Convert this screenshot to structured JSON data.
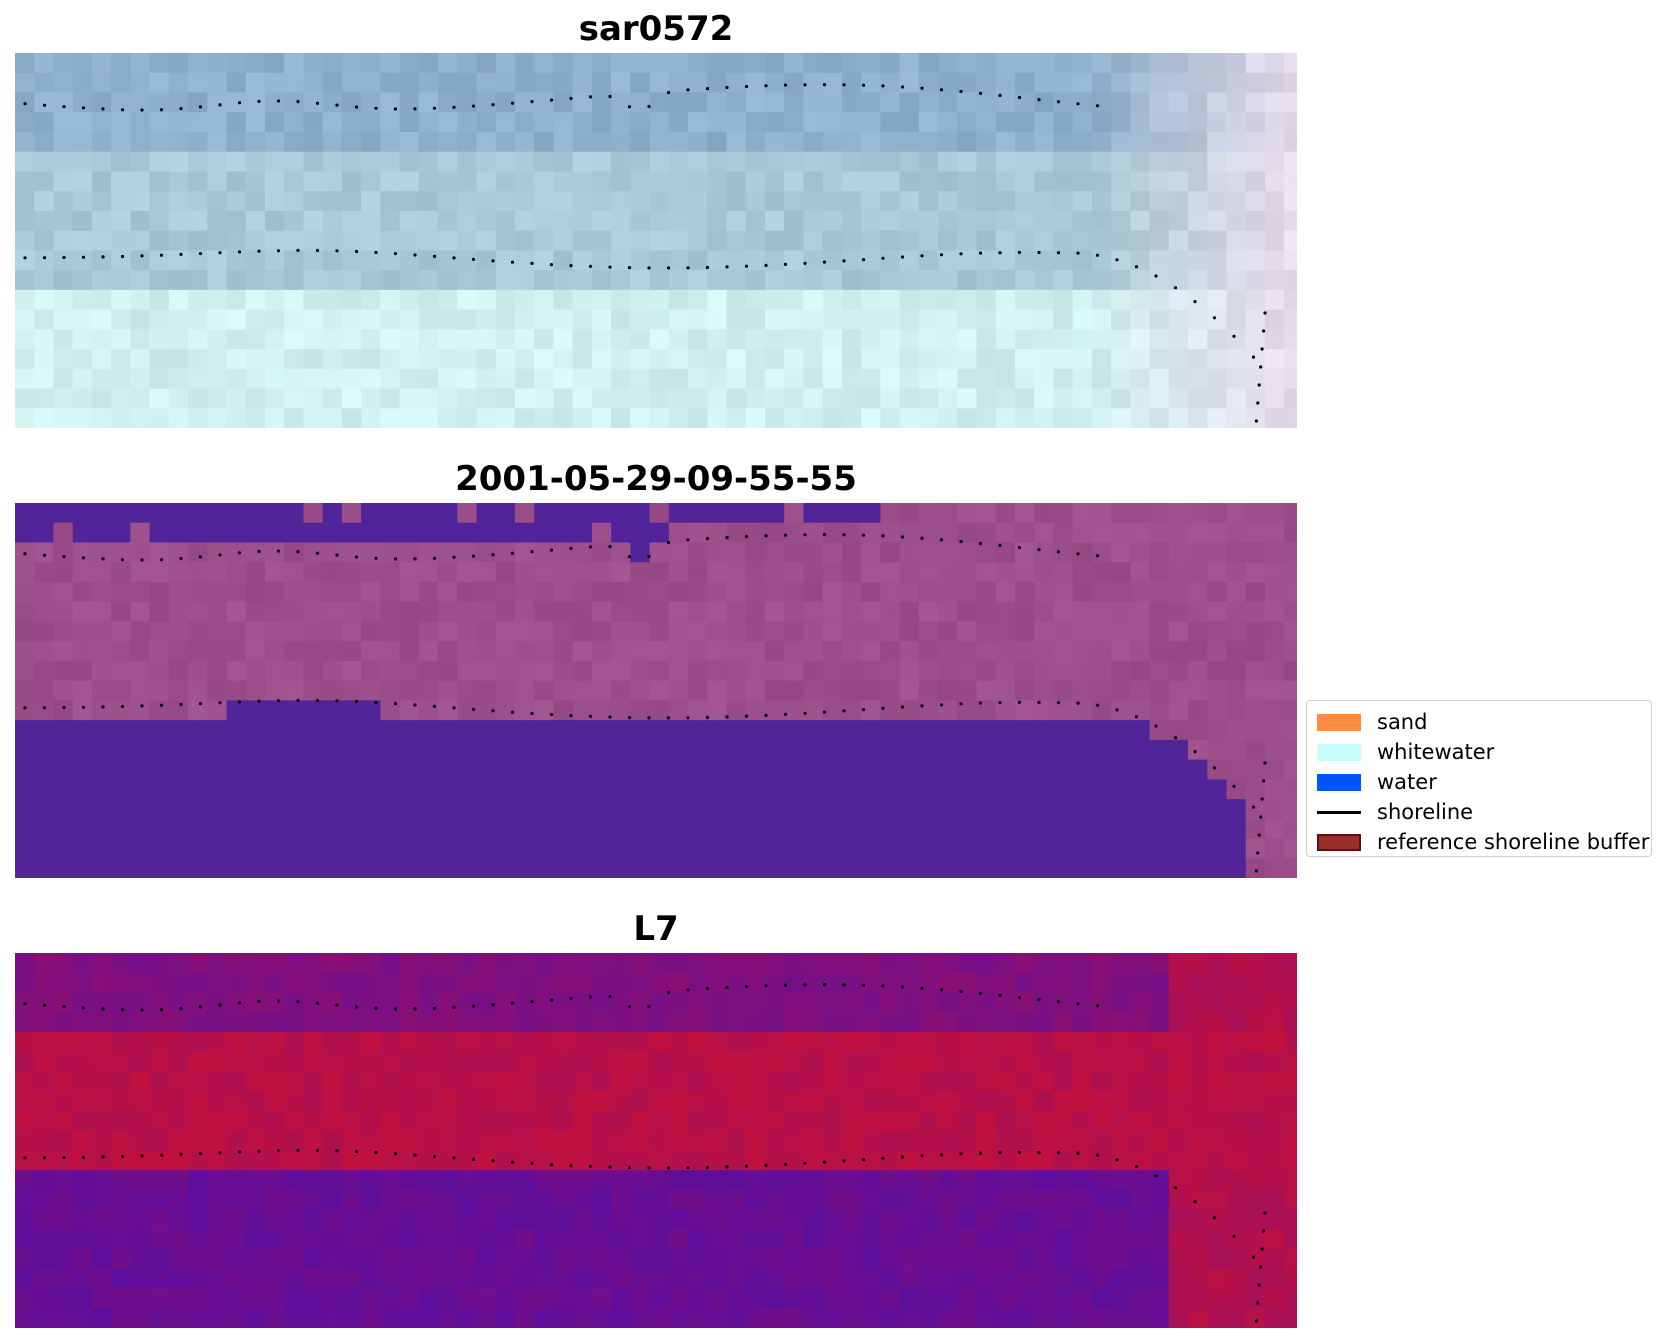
{
  "panels": [
    {
      "key": "rgb",
      "title": "sar0572"
    },
    {
      "key": "classified",
      "title": "2001-05-29-09-55-55"
    },
    {
      "key": "index",
      "title": "L7"
    }
  ],
  "legend": {
    "items": [
      {
        "label": "sand",
        "color": "#ff8c3f",
        "kind": "patch"
      },
      {
        "label": "whitewater",
        "color": "#c8fdfd",
        "kind": "patch"
      },
      {
        "label": "water",
        "color": "#0055ff",
        "kind": "patch"
      },
      {
        "label": "shoreline",
        "color": "#000000",
        "kind": "line"
      },
      {
        "label": "reference shoreline buffer",
        "color": "#9b2d2d",
        "kind": "patch",
        "edge": "#5a1010"
      }
    ]
  },
  "colors": {
    "rgb_bands": [
      "#8fb0cc",
      "#b6d7dd",
      "#d0f0f0"
    ],
    "classified_land": "#9c4f8a",
    "classified_water": "#52249a",
    "index_low": "#5b0ea0",
    "index_high": "#c01040",
    "shoreline_dots": "#000000"
  }
}
